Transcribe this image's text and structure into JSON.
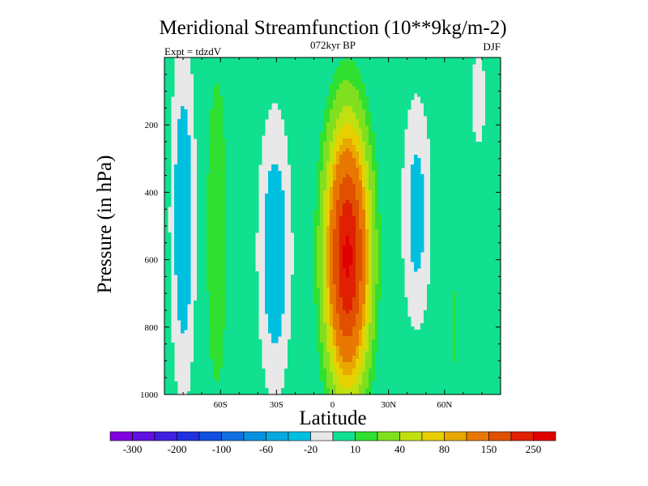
{
  "chart_data": {
    "type": "heatmap",
    "title": "Meridional Streamfunction (10**9kg/m-2)",
    "subtitle": "072kyr BP",
    "left_label": "Expt = tdzdV",
    "right_label": "DJF",
    "xlabel": "Latitude",
    "ylabel": "Pressure (in hPa)",
    "xlim": [
      -90,
      90
    ],
    "ylim": [
      1000,
      0
    ],
    "x_ticks": [
      {
        "value": -60,
        "label": "60S"
      },
      {
        "value": -30,
        "label": "30S"
      },
      {
        "value": 0,
        "label": "0"
      },
      {
        "value": 30,
        "label": "30N"
      },
      {
        "value": 60,
        "label": "60N"
      }
    ],
    "y_ticks": [
      {
        "value": 200,
        "label": "200"
      },
      {
        "value": 400,
        "label": "400"
      },
      {
        "value": 600,
        "label": "600"
      },
      {
        "value": 800,
        "label": "800"
      },
      {
        "value": 1000,
        "label": "1000"
      }
    ],
    "colorbar": {
      "colors": [
        "#8000e0",
        "#6010e0",
        "#4020e0",
        "#2030e0",
        "#1050e0",
        "#1070e0",
        "#0890e0",
        "#08a8e0",
        "#00c0e0",
        "#e8e8e8",
        "#10e090",
        "#30e030",
        "#80e020",
        "#c0e010",
        "#e8d000",
        "#e8a800",
        "#e87800",
        "#e05000",
        "#e02000",
        "#e00000"
      ],
      "labels": [
        "-300",
        "-200",
        "-100",
        "-60",
        "-20",
        "10",
        "40",
        "80",
        "150",
        "250"
      ],
      "levels": [
        -400,
        -300,
        -250,
        -200,
        -150,
        -100,
        -80,
        -60,
        -40,
        -20,
        -10,
        10,
        20,
        40,
        60,
        80,
        100,
        150,
        200,
        250,
        300
      ]
    },
    "grid": false,
    "field_features": [
      {
        "name": "southern-negative-band",
        "center_lat": -80,
        "center_p": 500,
        "peak": -30
      },
      {
        "name": "southern-positive-band",
        "center_lat": -60,
        "center_p": 500,
        "peak": 20
      },
      {
        "name": "southern-tropical-negative-cell",
        "center_lat": -30,
        "center_p": 550,
        "peak": -30
      },
      {
        "name": "hadley-positive-cell",
        "center_lat": 8,
        "center_p": 580,
        "peak": 260
      },
      {
        "name": "northern-negative-cell",
        "center_lat": 45,
        "center_p": 450,
        "peak": -25
      },
      {
        "name": "northern-positive-strip",
        "center_lat": 65,
        "center_p": 800,
        "peak": 15
      },
      {
        "name": "arctic-negative-strip",
        "center_lat": 78,
        "center_p": 120,
        "peak": -15
      }
    ]
  }
}
